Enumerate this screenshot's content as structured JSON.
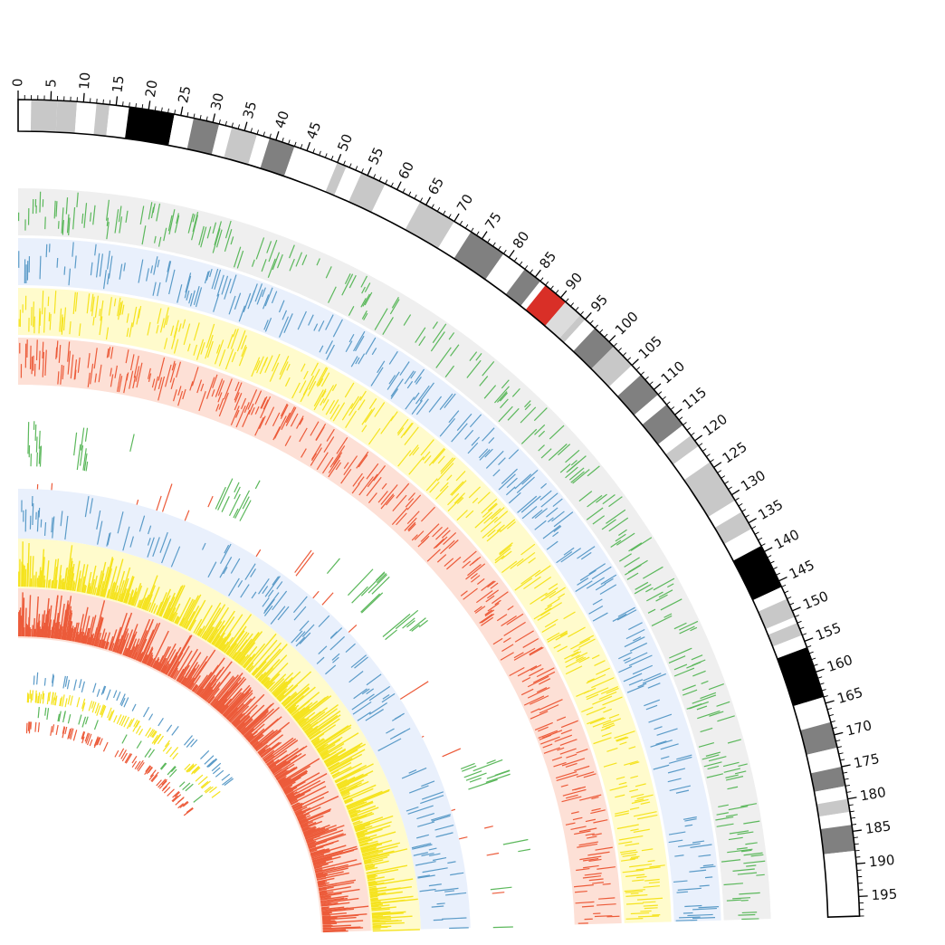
{
  "figure": {
    "type": "circos_quadrant",
    "axis_unit": "Mb",
    "axis_max": 198,
    "major_tick_step": 5,
    "minor_tick_step": 1,
    "tick_labels": [
      "0",
      "5",
      "10",
      "15",
      "20",
      "25",
      "30",
      "35",
      "40",
      "45",
      "50",
      "55",
      "60",
      "65",
      "70",
      "75",
      "80",
      "85",
      "90",
      "95",
      "100",
      "105",
      "110",
      "115",
      "120",
      "125",
      "130",
      "135",
      "140",
      "145",
      "150",
      "155",
      "160",
      "165",
      "170",
      "175",
      "180",
      "185",
      "190",
      "195"
    ]
  },
  "ideogram": {
    "bands": [
      {
        "start": 0,
        "end": 2,
        "stain": "gneg"
      },
      {
        "start": 2,
        "end": 6,
        "stain": "gpos25"
      },
      {
        "start": 6,
        "end": 9,
        "stain": "gpos25"
      },
      {
        "start": 9,
        "end": 12,
        "stain": "gneg"
      },
      {
        "start": 12,
        "end": 14,
        "stain": "gpos25"
      },
      {
        "start": 14,
        "end": 17,
        "stain": "gneg"
      },
      {
        "start": 17,
        "end": 24,
        "stain": "gpos100"
      },
      {
        "start": 24,
        "end": 27,
        "stain": "gneg"
      },
      {
        "start": 27,
        "end": 31,
        "stain": "gpos75"
      },
      {
        "start": 31,
        "end": 33,
        "stain": "gneg"
      },
      {
        "start": 33,
        "end": 37,
        "stain": "gpos25"
      },
      {
        "start": 37,
        "end": 39,
        "stain": "gneg"
      },
      {
        "start": 39,
        "end": 43,
        "stain": "gpos75"
      },
      {
        "start": 43,
        "end": 50,
        "stain": "gneg"
      },
      {
        "start": 50,
        "end": 51.5,
        "stain": "gpos25"
      },
      {
        "start": 51.5,
        "end": 54,
        "stain": "gneg"
      },
      {
        "start": 54,
        "end": 58,
        "stain": "gpos25"
      },
      {
        "start": 58,
        "end": 64,
        "stain": "gneg"
      },
      {
        "start": 64,
        "end": 70,
        "stain": "gpos25"
      },
      {
        "start": 70,
        "end": 73,
        "stain": "gneg"
      },
      {
        "start": 73,
        "end": 79,
        "stain": "gpos75"
      },
      {
        "start": 79,
        "end": 83,
        "stain": "gneg"
      },
      {
        "start": 83,
        "end": 86,
        "stain": "gpos75"
      },
      {
        "start": 86,
        "end": 87,
        "stain": "gneg"
      },
      {
        "start": 87,
        "end": 91,
        "stain": "acen"
      },
      {
        "start": 91,
        "end": 94,
        "stain": "gvar"
      },
      {
        "start": 94,
        "end": 95,
        "stain": "gpos25"
      },
      {
        "start": 95,
        "end": 97,
        "stain": "gneg"
      },
      {
        "start": 97,
        "end": 101,
        "stain": "gpos75"
      },
      {
        "start": 101,
        "end": 105,
        "stain": "gpos25"
      },
      {
        "start": 105,
        "end": 107,
        "stain": "gneg"
      },
      {
        "start": 107,
        "end": 111,
        "stain": "gpos75"
      },
      {
        "start": 111,
        "end": 113,
        "stain": "gneg"
      },
      {
        "start": 113,
        "end": 117,
        "stain": "gpos75"
      },
      {
        "start": 117,
        "end": 119,
        "stain": "gneg"
      },
      {
        "start": 119,
        "end": 121,
        "stain": "gpos25"
      },
      {
        "start": 121,
        "end": 124,
        "stain": "gneg"
      },
      {
        "start": 124,
        "end": 131,
        "stain": "gpos25"
      },
      {
        "start": 131,
        "end": 133,
        "stain": "gneg"
      },
      {
        "start": 133,
        "end": 136,
        "stain": "gpos25"
      },
      {
        "start": 136,
        "end": 139,
        "stain": "gneg"
      },
      {
        "start": 139,
        "end": 146,
        "stain": "gpos100"
      },
      {
        "start": 146,
        "end": 148,
        "stain": "gneg"
      },
      {
        "start": 148,
        "end": 151,
        "stain": "gpos25"
      },
      {
        "start": 151,
        "end": 152,
        "stain": "gneg"
      },
      {
        "start": 152,
        "end": 154,
        "stain": "gpos25"
      },
      {
        "start": 154,
        "end": 156,
        "stain": "gneg"
      },
      {
        "start": 156,
        "end": 164,
        "stain": "gpos100"
      },
      {
        "start": 164,
        "end": 168,
        "stain": "gneg"
      },
      {
        "start": 168,
        "end": 172,
        "stain": "gpos75"
      },
      {
        "start": 172,
        "end": 175,
        "stain": "gneg"
      },
      {
        "start": 175,
        "end": 178,
        "stain": "gpos75"
      },
      {
        "start": 178,
        "end": 180,
        "stain": "gneg"
      },
      {
        "start": 180,
        "end": 182,
        "stain": "gpos25"
      },
      {
        "start": 182,
        "end": 184,
        "stain": "gneg"
      },
      {
        "start": 184,
        "end": 188,
        "stain": "gpos75"
      },
      {
        "start": 188,
        "end": 198,
        "stain": "gneg"
      }
    ],
    "stain_colors": {
      "gneg": "#ffffff",
      "gpos25": "#c8c8c8",
      "gpos50": "#a0a0a0",
      "gpos75": "#808080",
      "gpos100": "#000000",
      "acen": "#d92f27",
      "gvar": "#dcdcdc"
    }
  },
  "colors": {
    "green": "#5cb85c",
    "blue": "#5b9bc8",
    "yellow": "#f5e31f",
    "orange": "#ec5b3a",
    "bg_grey": "#efefef",
    "bg_blue": "#e9f0fc",
    "bg_yellow": "#fffbcc",
    "bg_orange": "#fde0d6"
  },
  "tracks": [
    {
      "name": "outer-grey-green-track",
      "color": "green",
      "background": "bg_grey",
      "style": "ticks",
      "density": 0.42,
      "seed": 11
    },
    {
      "name": "outer-blue-track",
      "color": "blue",
      "background": "bg_blue",
      "style": "ticks",
      "density": 0.42,
      "seed": 23
    },
    {
      "name": "outer-yellow-track",
      "color": "yellow",
      "background": "bg_yellow",
      "style": "ticks",
      "density": 0.55,
      "seed": 37
    },
    {
      "name": "outer-orange-track",
      "color": "orange",
      "background": "bg_orange",
      "style": "ticks",
      "density": 0.55,
      "seed": 41
    },
    {
      "name": "middle-green-clusters-track",
      "color": "green",
      "background": "",
      "style": "clusters",
      "density": 0.1,
      "seed": 53
    },
    {
      "name": "middle-red-sparse-track",
      "color": "orange",
      "background": "",
      "style": "sparse",
      "density": 0.04,
      "seed": 59
    },
    {
      "name": "inner-blue-track",
      "color": "blue",
      "background": "bg_blue",
      "style": "ticks",
      "density": 0.2,
      "seed": 67
    },
    {
      "name": "inner-yellow-track",
      "color": "yellow",
      "background": "bg_yellow",
      "style": "bars",
      "density": 0.85,
      "seed": 71
    },
    {
      "name": "inner-orange-track",
      "color": "orange",
      "background": "bg_orange",
      "style": "bars",
      "density": 0.95,
      "seed": 83
    },
    {
      "name": "innermost-blue-ticks",
      "color": "blue",
      "background": "",
      "style": "thin",
      "density": 0.18,
      "seed": 89
    },
    {
      "name": "innermost-yellow-ticks",
      "color": "yellow",
      "background": "",
      "style": "thin",
      "density": 0.35,
      "seed": 97
    },
    {
      "name": "innermost-green-ticks",
      "color": "green",
      "background": "",
      "style": "thin",
      "density": 0.12,
      "seed": 101
    },
    {
      "name": "innermost-orange-ticks",
      "color": "orange",
      "background": "",
      "style": "thin",
      "density": 0.35,
      "seed": 103
    }
  ]
}
